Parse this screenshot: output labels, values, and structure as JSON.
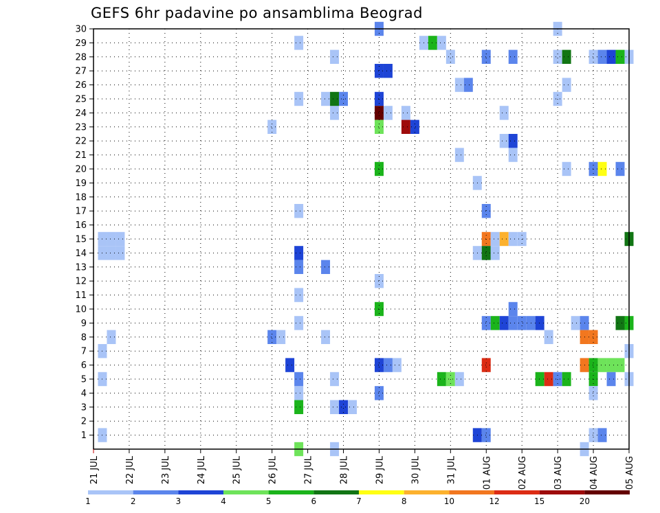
{
  "chart_data": {
    "type": "heatmap",
    "title": "GEFS 6hr padavine po ansamblima Beograd",
    "xlabel": "",
    "ylabel": "",
    "x_tick_labels": [
      "21 JUL",
      "22 JUL",
      "23 JUL",
      "24 JUL",
      "25 JUL",
      "26 JUL",
      "27 JUL",
      "28 JUL",
      "29 JUL",
      "30 JUL",
      "31 JUL",
      "01 AUG",
      "02 AUG",
      "03 AUG",
      "04 AUG",
      "05 AUG"
    ],
    "xlim": [
      0,
      60
    ],
    "x_unit": "6-hour steps from 21 JUL 00Z",
    "y_tick_labels": [
      "1",
      "2",
      "3",
      "4",
      "5",
      "6",
      "7",
      "8",
      "9",
      "10",
      "11",
      "12",
      "13",
      "14",
      "15",
      "16",
      "17",
      "18",
      "19",
      "20",
      "21",
      "22",
      "23",
      "24",
      "25",
      "26",
      "27",
      "28",
      "29",
      "30"
    ],
    "ylim": [
      0,
      30
    ],
    "y_unit": "ensemble member",
    "grid": true,
    "colorbar": {
      "labels": [
        "1",
        "2",
        "3",
        "4",
        "5",
        "6",
        "7",
        "8",
        "10",
        "12",
        "15",
        "20"
      ],
      "colors": [
        "#a9c4f7",
        "#5b85ec",
        "#1e44d6",
        "#6ee35a",
        "#1bb41b",
        "#117514",
        "#ffff13",
        "#fcb12e",
        "#f2771f",
        "#dc2c14",
        "#9e0b0b",
        "#640000"
      ]
    },
    "cells": [
      [
        1,
        15,
        0
      ],
      [
        2,
        15,
        0
      ],
      [
        3,
        15,
        0
      ],
      [
        1,
        14,
        0
      ],
      [
        2,
        14,
        0
      ],
      [
        3,
        14,
        0
      ],
      [
        2,
        8,
        0
      ],
      [
        1,
        7,
        0
      ],
      [
        1,
        5,
        0
      ],
      [
        1,
        1,
        0
      ],
      [
        20,
        23,
        0
      ],
      [
        20,
        8,
        1
      ],
      [
        21,
        8,
        0
      ],
      [
        23,
        29,
        0
      ],
      [
        23,
        25,
        0
      ],
      [
        23,
        17,
        0
      ],
      [
        23,
        11,
        0
      ],
      [
        23,
        9,
        0
      ],
      [
        23,
        4,
        0
      ],
      [
        23,
        14,
        2
      ],
      [
        23,
        13,
        1
      ],
      [
        23,
        5,
        1
      ],
      [
        23,
        3,
        4
      ],
      [
        23,
        0,
        3
      ],
      [
        22,
        6,
        2
      ],
      [
        27,
        28,
        0
      ],
      [
        27,
        24,
        0
      ],
      [
        27,
        5,
        0
      ],
      [
        27,
        3,
        0
      ],
      [
        27,
        0,
        0
      ],
      [
        26,
        25,
        0
      ],
      [
        26,
        8,
        0
      ],
      [
        27,
        25,
        5
      ],
      [
        28,
        25,
        1
      ],
      [
        26,
        13,
        1
      ],
      [
        28,
        3,
        2
      ],
      [
        29,
        3,
        0
      ],
      [
        32,
        30,
        1
      ],
      [
        32,
        27,
        2
      ],
      [
        33,
        27,
        2
      ],
      [
        32,
        25,
        2
      ],
      [
        32,
        24,
        11
      ],
      [
        33,
        24,
        0
      ],
      [
        32,
        23,
        3
      ],
      [
        32,
        20,
        4
      ],
      [
        32,
        12,
        0
      ],
      [
        32,
        10,
        4
      ],
      [
        32,
        6,
        2
      ],
      [
        33,
        6,
        1
      ],
      [
        34,
        6,
        0
      ],
      [
        32,
        4,
        1
      ],
      [
        35,
        24,
        0
      ],
      [
        35,
        23,
        10
      ],
      [
        36,
        23,
        2
      ],
      [
        37,
        29,
        0
      ],
      [
        38,
        29,
        4
      ],
      [
        39,
        29,
        0
      ],
      [
        40,
        28,
        0
      ],
      [
        39,
        5,
        4
      ],
      [
        40,
        5,
        3
      ],
      [
        41,
        5,
        0
      ],
      [
        41,
        26,
        0
      ],
      [
        42,
        26,
        1
      ],
      [
        41,
        21,
        0
      ],
      [
        43,
        19,
        0
      ],
      [
        43,
        14,
        0
      ],
      [
        44,
        14,
        0
      ],
      [
        43,
        1,
        2
      ],
      [
        44,
        1,
        1
      ],
      [
        44,
        28,
        1
      ],
      [
        44,
        17,
        1
      ],
      [
        44,
        15,
        8
      ],
      [
        45,
        15,
        0
      ],
      [
        44,
        14,
        5
      ],
      [
        45,
        14,
        0
      ],
      [
        44,
        9,
        1
      ],
      [
        45,
        9,
        4
      ],
      [
        44,
        6,
        9
      ],
      [
        46,
        9,
        2
      ],
      [
        47,
        9,
        1
      ],
      [
        46,
        22,
        0
      ],
      [
        47,
        22,
        2
      ],
      [
        47,
        21,
        0
      ],
      [
        46,
        15,
        7
      ],
      [
        47,
        15,
        0
      ],
      [
        48,
        15,
        0
      ],
      [
        46,
        24,
        0
      ],
      [
        47,
        28,
        1
      ],
      [
        47,
        10,
        1
      ],
      [
        48,
        9,
        1
      ],
      [
        49,
        9,
        1
      ],
      [
        50,
        9,
        2
      ],
      [
        51,
        8,
        0
      ],
      [
        50,
        5,
        4
      ],
      [
        51,
        5,
        9
      ],
      [
        52,
        5,
        1
      ],
      [
        53,
        5,
        4
      ],
      [
        52,
        30,
        0
      ],
      [
        52,
        28,
        0
      ],
      [
        53,
        28,
        5
      ],
      [
        53,
        26,
        0
      ],
      [
        52,
        25,
        0
      ],
      [
        53,
        20,
        0
      ],
      [
        54,
        9,
        0
      ],
      [
        55,
        9,
        1
      ],
      [
        55,
        8,
        8
      ],
      [
        56,
        8,
        8
      ],
      [
        55,
        6,
        8
      ],
      [
        56,
        6,
        4
      ],
      [
        57,
        6,
        3
      ],
      [
        58,
        6,
        3
      ],
      [
        59,
        6,
        3
      ],
      [
        55,
        0,
        0
      ],
      [
        56,
        5,
        4
      ],
      [
        58,
        5,
        1
      ],
      [
        60,
        5,
        0
      ],
      [
        56,
        4,
        0
      ],
      [
        56,
        1,
        0
      ],
      [
        57,
        1,
        1
      ],
      [
        56,
        28,
        0
      ],
      [
        57,
        28,
        1
      ],
      [
        58,
        28,
        2
      ],
      [
        59,
        28,
        4
      ],
      [
        60,
        28,
        0
      ],
      [
        56,
        20,
        1
      ],
      [
        57,
        20,
        6
      ],
      [
        59,
        20,
        1
      ],
      [
        59,
        9,
        5
      ],
      [
        60,
        9,
        4
      ],
      [
        60,
        15,
        5
      ],
      [
        60,
        7,
        0
      ]
    ]
  }
}
